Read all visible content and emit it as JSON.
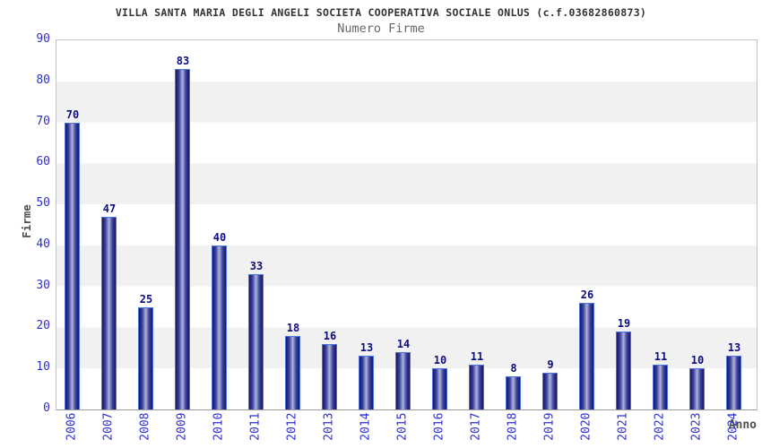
{
  "chart_data": {
    "type": "bar",
    "title": "VILLA SANTA MARIA DEGLI ANGELI SOCIETA COOPERATIVA SOCIALE ONLUS (c.f.03682860873)",
    "subtitle": "Numero Firme",
    "xlabel": "Anno",
    "ylabel": "Firme",
    "categories": [
      "2006",
      "2007",
      "2008",
      "2009",
      "2010",
      "2011",
      "2012",
      "2013",
      "2014",
      "2015",
      "2016",
      "2017",
      "2018",
      "2019",
      "2020",
      "2021",
      "2022",
      "2023",
      "2024"
    ],
    "values": [
      70,
      47,
      25,
      83,
      40,
      33,
      18,
      16,
      13,
      14,
      10,
      11,
      8,
      9,
      26,
      19,
      11,
      10,
      13
    ],
    "ylim": [
      0,
      90
    ],
    "ytick_step": 10,
    "grid": "alternating-horizontal-bands",
    "legend": "none",
    "colors": {
      "title": "#333333",
      "subtitle": "#666666",
      "tick_label": "#2f2fd0",
      "value_label": "#0d0d7e",
      "axis_title": "#4d4d4d",
      "band": "#f1f1f1",
      "plot_border": "#c4c4c4",
      "bar_border": "#4b74dc",
      "bar_edge": "#15156b",
      "bar_mid": "#3d4399",
      "bar_center": "#aeb5e2"
    }
  }
}
